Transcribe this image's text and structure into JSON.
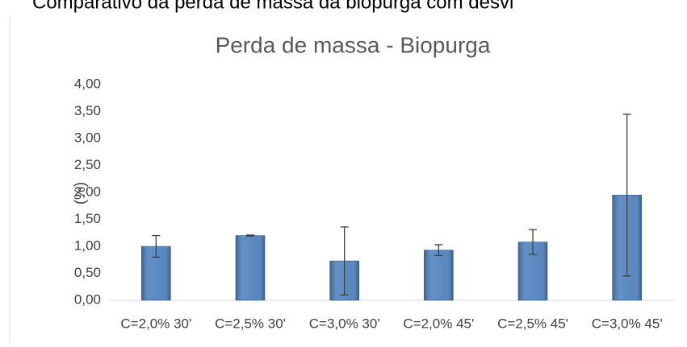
{
  "chart_data": {
    "type": "bar",
    "caption": "Comparativo da perda de massa da biopurga com desvi",
    "title": "Perda de massa - Biopurga",
    "ylabel": "(%)",
    "categories": [
      "C=2,0% 30'",
      "C=2,5% 30'",
      "C=3,0% 30'",
      "C=2,0% 45'",
      "C=2,5% 45'",
      "C=3,0% 45'"
    ],
    "values": [
      1.0,
      1.2,
      0.73,
      0.93,
      1.08,
      1.95
    ],
    "errors": [
      0.2,
      0.01,
      0.63,
      0.1,
      0.23,
      1.5
    ],
    "color": "#4f81bd",
    "ylim": [
      0,
      4
    ],
    "yticks": [
      {
        "value": 0,
        "label": "0,00"
      },
      {
        "value": 0.5,
        "label": "0,50"
      },
      {
        "value": 1,
        "label": "1,00"
      },
      {
        "value": 1.5,
        "label": "1,50"
      },
      {
        "value": 2,
        "label": "2,00"
      },
      {
        "value": 2.5,
        "label": "2,50"
      },
      {
        "value": 3,
        "label": "3,00"
      },
      {
        "value": 3.5,
        "label": "3,50"
      },
      {
        "value": 4,
        "label": "4,00"
      }
    ],
    "grid": false
  }
}
